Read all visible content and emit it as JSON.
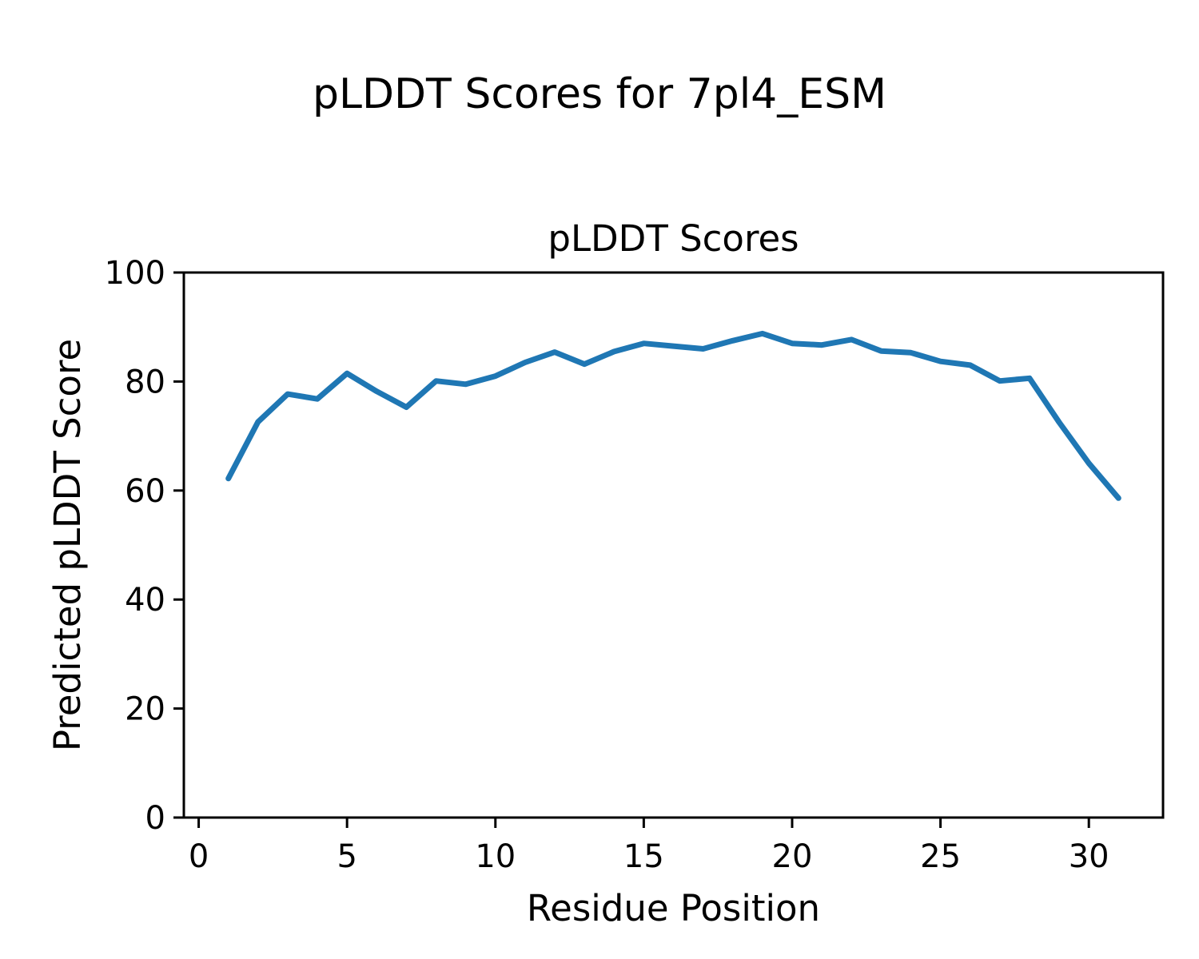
{
  "figure": {
    "suptitle": "pLDDT Scores for 7pl4_ESM",
    "background_color": "#ffffff",
    "text_color": "#000000"
  },
  "chart_data": {
    "type": "line",
    "title": "pLDDT Scores",
    "xlabel": "Residue Position",
    "ylabel": "Predicted pLDDT Score",
    "x": [
      1,
      2,
      3,
      4,
      5,
      6,
      7,
      8,
      9,
      10,
      11,
      12,
      13,
      14,
      15,
      16,
      17,
      18,
      19,
      20,
      21,
      22,
      23,
      24,
      25,
      26,
      27,
      28,
      29,
      30,
      31
    ],
    "series": [
      {
        "name": "Predicted pLDDT Score",
        "values": [
          62.2,
          72.6,
          77.7,
          76.8,
          81.5,
          78.2,
          75.3,
          80.1,
          79.5,
          81.0,
          83.5,
          85.4,
          83.2,
          85.5,
          87.0,
          86.5,
          86.0,
          87.5,
          88.8,
          87.0,
          86.7,
          87.7,
          85.6,
          85.3,
          83.7,
          83.0,
          80.1,
          80.6,
          72.5,
          65.0,
          58.6
        ]
      }
    ],
    "xlim": [
      -0.5,
      32.5
    ],
    "ylim": [
      0,
      100
    ],
    "xticks": [
      0,
      5,
      10,
      15,
      20,
      25,
      30
    ],
    "yticks": [
      0,
      20,
      40,
      60,
      80,
      100
    ],
    "grid": false,
    "legend": "none",
    "line_color": "#1f77b4",
    "axis_color": "#000000"
  }
}
